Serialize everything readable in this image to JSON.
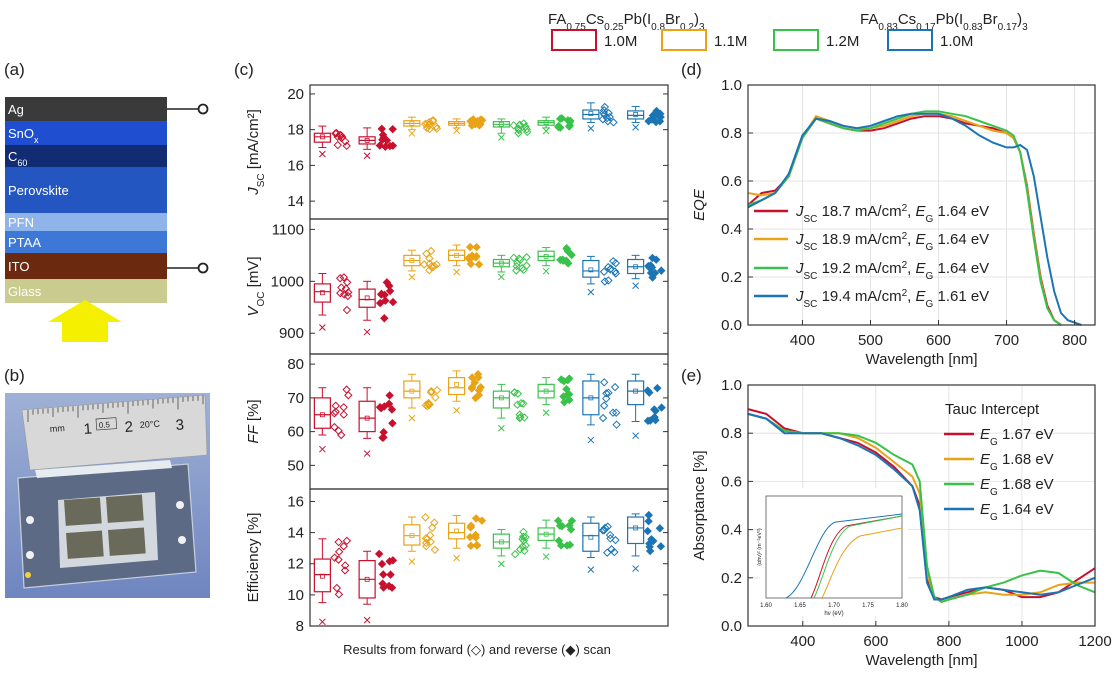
{
  "colors": {
    "red": "#c8102e",
    "orange": "#e8a317",
    "green": "#39c24a",
    "blue": "#1b75b5"
  },
  "legend_top": {
    "group1": {
      "prefix": "FA",
      "s1": "0.75",
      "mid": "Cs",
      "s2": "0.25",
      "mid2": "Pb(I",
      "s3": "0.8",
      "mid3": "Br",
      "s4": "0.2",
      "end": ")",
      "s5": "3"
    },
    "group2": {
      "prefix": "FA",
      "s1": "0.83",
      "mid": "Cs",
      "s2": "0.17",
      "mid2": "Pb(I",
      "s3": "0.83",
      "mid3": "Br",
      "s4": "0.17",
      "end": ")",
      "s5": "3"
    },
    "items": [
      {
        "label": "1.0M",
        "color": "#c8102e"
      },
      {
        "label": "1.1M",
        "color": "#e8a317"
      },
      {
        "label": "1.2M",
        "color": "#39c24a"
      },
      {
        "label": "1.0M",
        "color": "#1b75b5"
      }
    ]
  },
  "panels": {
    "a": "(a)",
    "b": "(b)",
    "c": "(c)",
    "d": "(d)",
    "e": "(e)"
  },
  "stack": {
    "layers": [
      {
        "label": "Ag",
        "color": "#3a3a3a"
      },
      {
        "label": "SnO",
        "sub": "x",
        "color": "#1f4fd0"
      },
      {
        "label": "C",
        "sub": "60",
        "color": "#122c73"
      },
      {
        "label": "Perovskite",
        "color": "#2456c2"
      },
      {
        "label": "PFN",
        "color": "#8fb4ea"
      },
      {
        "label": "PTAA",
        "color": "#3d78d6"
      },
      {
        "label": "ITO",
        "color": "#6b2a10"
      },
      {
        "label": "Glass",
        "color": "#c9cc8e"
      }
    ]
  },
  "photo": {
    "ruler_text": [
      "mm",
      "1",
      "0.5",
      "2",
      "20°C",
      "3"
    ]
  },
  "box_xlabel": "Results from forward (◇) and reverse (◆) scan",
  "chart_data": [
    {
      "type": "box",
      "ylabel_main": "J",
      "ylabel_sub": "SC",
      "ylabel_unit": " [mA/cm²]",
      "ylim": [
        13,
        20.5
      ],
      "ticks": [
        14,
        16,
        18,
        20
      ],
      "boxes": [
        {
          "q1": 17.3,
          "median": 17.6,
          "q3": 17.8,
          "low": 17.0,
          "high": 18.2,
          "mean": 17.6
        },
        {
          "q1": 17.2,
          "median": 17.4,
          "q3": 17.6,
          "low": 16.9,
          "high": 18.1,
          "mean": 17.4
        },
        {
          "q1": 18.2,
          "median": 18.35,
          "q3": 18.5,
          "low": 18.0,
          "high": 18.7,
          "mean": 18.35
        },
        {
          "q1": 18.25,
          "median": 18.35,
          "q3": 18.45,
          "low": 18.1,
          "high": 18.6,
          "mean": 18.35
        },
        {
          "q1": 18.15,
          "median": 18.3,
          "q3": 18.45,
          "low": 17.8,
          "high": 18.6,
          "mean": 18.3
        },
        {
          "q1": 18.25,
          "median": 18.4,
          "q3": 18.5,
          "low": 18.1,
          "high": 18.7,
          "mean": 18.4
        },
        {
          "q1": 18.6,
          "median": 18.85,
          "q3": 19.1,
          "low": 18.4,
          "high": 19.5,
          "mean": 18.9
        },
        {
          "q1": 18.6,
          "median": 18.8,
          "q3": 19.05,
          "low": 18.4,
          "high": 19.3,
          "mean": 18.85
        }
      ]
    },
    {
      "type": "box",
      "ylabel_main": "V",
      "ylabel_sub": "OC",
      "ylabel_unit": " [mV]",
      "ylim": [
        860,
        1120
      ],
      "ticks": [
        900,
        1000,
        1100
      ],
      "boxes": [
        {
          "q1": 960,
          "median": 980,
          "q3": 995,
          "low": 935,
          "high": 1015,
          "mean": 978
        },
        {
          "q1": 950,
          "median": 965,
          "q3": 985,
          "low": 925,
          "high": 1000,
          "mean": 968
        },
        {
          "q1": 1030,
          "median": 1040,
          "q3": 1050,
          "low": 1020,
          "high": 1060,
          "mean": 1040
        },
        {
          "q1": 1040,
          "median": 1050,
          "q3": 1060,
          "low": 1030,
          "high": 1070,
          "mean": 1050
        },
        {
          "q1": 1028,
          "median": 1035,
          "q3": 1042,
          "low": 1018,
          "high": 1050,
          "mean": 1035
        },
        {
          "q1": 1040,
          "median": 1048,
          "q3": 1058,
          "low": 1030,
          "high": 1065,
          "mean": 1048
        },
        {
          "q1": 1008,
          "median": 1020,
          "q3": 1040,
          "low": 995,
          "high": 1048,
          "mean": 1022
        },
        {
          "q1": 1015,
          "median": 1028,
          "q3": 1042,
          "low": 1005,
          "high": 1050,
          "mean": 1028
        }
      ]
    },
    {
      "type": "box",
      "ylabel_main": "FF",
      "ylabel_sub": "",
      "ylabel_unit": " [%]",
      "ylim": [
        43,
        83
      ],
      "ticks": [
        50,
        60,
        70,
        80
      ],
      "boxes": [
        {
          "q1": 61,
          "median": 65,
          "q3": 70,
          "low": 59,
          "high": 73,
          "mean": 65
        },
        {
          "q1": 60,
          "median": 64,
          "q3": 69,
          "low": 58,
          "high": 73,
          "mean": 64
        },
        {
          "q1": 70,
          "median": 72,
          "q3": 75,
          "low": 67,
          "high": 77,
          "mean": 72
        },
        {
          "q1": 71,
          "median": 73,
          "q3": 76,
          "low": 69,
          "high": 78,
          "mean": 74
        },
        {
          "q1": 67,
          "median": 70,
          "q3": 72,
          "low": 64,
          "high": 74,
          "mean": 70
        },
        {
          "q1": 70,
          "median": 72,
          "q3": 74,
          "low": 68,
          "high": 76,
          "mean": 72
        },
        {
          "q1": 65,
          "median": 70,
          "q3": 75,
          "low": 62,
          "high": 77,
          "mean": 70
        },
        {
          "q1": 68,
          "median": 72,
          "q3": 75,
          "low": 63,
          "high": 77,
          "mean": 72
        }
      ]
    },
    {
      "type": "box",
      "ylabel_main": "Efficiency",
      "ylabel_sub": "",
      "ylabel_unit": " [%]",
      "ylim": [
        8,
        16.8
      ],
      "ticks": [
        8,
        10,
        12,
        14,
        16
      ],
      "boxes": [
        {
          "q1": 10.2,
          "median": 11.3,
          "q3": 12.3,
          "low": 9.5,
          "high": 13.6,
          "mean": 11.2
        },
        {
          "q1": 9.8,
          "median": 11.0,
          "q3": 12.2,
          "low": 9.4,
          "high": 12.8,
          "mean": 11.0
        },
        {
          "q1": 13.2,
          "median": 13.8,
          "q3": 14.5,
          "low": 12.8,
          "high": 15.0,
          "mean": 13.8
        },
        {
          "q1": 13.6,
          "median": 14.0,
          "q3": 14.6,
          "low": 13.0,
          "high": 15.1,
          "mean": 14.1
        },
        {
          "q1": 13.0,
          "median": 13.4,
          "q3": 13.9,
          "low": 12.5,
          "high": 14.2,
          "mean": 13.4
        },
        {
          "q1": 13.5,
          "median": 13.9,
          "q3": 14.3,
          "low": 13.0,
          "high": 14.8,
          "mean": 13.9
        },
        {
          "q1": 12.8,
          "median": 13.8,
          "q3": 14.6,
          "low": 12.4,
          "high": 15.0,
          "mean": 13.7
        },
        {
          "q1": 13.3,
          "median": 14.3,
          "q3": 15.0,
          "low": 12.5,
          "high": 15.2,
          "mean": 14.3
        }
      ]
    },
    {
      "type": "line",
      "ylabel": "EQE",
      "xlabel": "Wavelength [nm]",
      "xlim": [
        320,
        830
      ],
      "ylim": [
        0,
        1.0
      ],
      "xticks": [
        400,
        500,
        600,
        700,
        800
      ],
      "yticks": [
        0.0,
        0.2,
        0.4,
        0.6,
        0.8,
        1.0
      ],
      "legend": [
        {
          "pre": "J",
          "sub": "SC",
          "txt": " 18.7 mA/cm",
          "sup": "2",
          "post": ", ",
          "eg": "E",
          "egsub": "G",
          "val": " 1.64 eV"
        },
        {
          "pre": "J",
          "sub": "SC",
          "txt": " 18.9 mA/cm",
          "sup": "2",
          "post": ", ",
          "eg": "E",
          "egsub": "G",
          "val": " 1.64 eV"
        },
        {
          "pre": "J",
          "sub": "SC",
          "txt": " 19.2 mA/cm",
          "sup": "2",
          "post": ", ",
          "eg": "E",
          "egsub": "G",
          "val": " 1.64 eV"
        },
        {
          "pre": "J",
          "sub": "SC",
          "txt": " 19.4 mA/cm",
          "sup": "2",
          "post": ", ",
          "eg": "E",
          "egsub": "G",
          "val": " 1.61 eV"
        }
      ],
      "series": [
        {
          "color": "#c8102e",
          "x": [
            320,
            340,
            360,
            380,
            400,
            420,
            440,
            460,
            480,
            500,
            520,
            540,
            560,
            580,
            600,
            620,
            640,
            660,
            680,
            700,
            710,
            720,
            730,
            740,
            750,
            760,
            770,
            780
          ],
          "y": [
            0.5,
            0.55,
            0.56,
            0.62,
            0.78,
            0.86,
            0.84,
            0.82,
            0.81,
            0.81,
            0.82,
            0.84,
            0.86,
            0.87,
            0.87,
            0.86,
            0.84,
            0.83,
            0.82,
            0.8,
            0.78,
            0.72,
            0.58,
            0.38,
            0.2,
            0.08,
            0.02,
            0.0
          ]
        },
        {
          "color": "#e8a317",
          "x": [
            320,
            340,
            360,
            380,
            400,
            420,
            440,
            460,
            480,
            500,
            520,
            540,
            560,
            580,
            600,
            620,
            640,
            660,
            680,
            700,
            710,
            720,
            730,
            740,
            750,
            760,
            770,
            780
          ],
          "y": [
            0.55,
            0.54,
            0.55,
            0.62,
            0.78,
            0.87,
            0.85,
            0.83,
            0.82,
            0.82,
            0.83,
            0.85,
            0.87,
            0.88,
            0.88,
            0.87,
            0.85,
            0.83,
            0.81,
            0.8,
            0.78,
            0.72,
            0.57,
            0.37,
            0.19,
            0.07,
            0.02,
            0.0
          ]
        },
        {
          "color": "#39c24a",
          "x": [
            320,
            340,
            360,
            380,
            400,
            420,
            440,
            460,
            480,
            500,
            520,
            540,
            560,
            580,
            600,
            620,
            640,
            660,
            680,
            700,
            710,
            720,
            730,
            740,
            750,
            760,
            770,
            780
          ],
          "y": [
            0.5,
            0.52,
            0.55,
            0.62,
            0.78,
            0.86,
            0.84,
            0.82,
            0.81,
            0.82,
            0.84,
            0.86,
            0.88,
            0.89,
            0.89,
            0.88,
            0.87,
            0.85,
            0.83,
            0.81,
            0.79,
            0.72,
            0.56,
            0.36,
            0.18,
            0.07,
            0.02,
            0.0
          ]
        },
        {
          "color": "#1b75b5",
          "x": [
            320,
            340,
            360,
            380,
            400,
            420,
            440,
            460,
            480,
            500,
            520,
            540,
            560,
            580,
            600,
            620,
            640,
            660,
            680,
            700,
            710,
            720,
            730,
            740,
            750,
            760,
            770,
            780,
            790,
            800,
            810
          ],
          "y": [
            0.49,
            0.52,
            0.55,
            0.63,
            0.79,
            0.86,
            0.85,
            0.83,
            0.82,
            0.83,
            0.85,
            0.87,
            0.88,
            0.88,
            0.88,
            0.86,
            0.83,
            0.79,
            0.76,
            0.74,
            0.74,
            0.75,
            0.73,
            0.62,
            0.45,
            0.28,
            0.14,
            0.05,
            0.02,
            0.01,
            0.0
          ]
        }
      ]
    },
    {
      "type": "line",
      "ylabel": "Absorptance [%]",
      "xlabel": "Wavelength [nm]",
      "xlim": [
        250,
        1200
      ],
      "ylim": [
        0,
        1.0
      ],
      "xticks": [
        400,
        600,
        800,
        1000,
        1200
      ],
      "yticks": [
        0.0,
        0.2,
        0.4,
        0.6,
        0.8,
        1.0
      ],
      "legend_title": "Tauc Intercept",
      "legend": [
        {
          "eg": "E",
          "egsub": "G",
          "val": " 1.67 eV"
        },
        {
          "eg": "E",
          "egsub": "G",
          "val": " 1.68 eV"
        },
        {
          "eg": "E",
          "egsub": "G",
          "val": " 1.68 eV"
        },
        {
          "eg": "E",
          "egsub": "G",
          "val": " 1.64 eV"
        }
      ],
      "series": [
        {
          "color": "#c8102e",
          "x": [
            250,
            300,
            350,
            400,
            450,
            500,
            550,
            600,
            650,
            700,
            720,
            740,
            760,
            780,
            800,
            850,
            900,
            950,
            1000,
            1050,
            1100,
            1150,
            1200
          ],
          "y": [
            0.9,
            0.88,
            0.82,
            0.8,
            0.8,
            0.78,
            0.76,
            0.72,
            0.66,
            0.58,
            0.5,
            0.2,
            0.12,
            0.11,
            0.12,
            0.14,
            0.16,
            0.15,
            0.12,
            0.12,
            0.14,
            0.19,
            0.24
          ]
        },
        {
          "color": "#e8a317",
          "x": [
            250,
            300,
            350,
            400,
            450,
            500,
            550,
            600,
            650,
            700,
            720,
            740,
            760,
            780,
            800,
            850,
            900,
            950,
            1000,
            1050,
            1100,
            1150,
            1200
          ],
          "y": [
            0.88,
            0.86,
            0.81,
            0.8,
            0.8,
            0.8,
            0.78,
            0.74,
            0.68,
            0.62,
            0.55,
            0.22,
            0.12,
            0.1,
            0.11,
            0.13,
            0.14,
            0.13,
            0.13,
            0.14,
            0.17,
            0.18,
            0.18
          ]
        },
        {
          "color": "#39c24a",
          "x": [
            250,
            300,
            350,
            400,
            450,
            500,
            550,
            600,
            650,
            700,
            720,
            740,
            760,
            780,
            800,
            850,
            900,
            950,
            1000,
            1050,
            1100,
            1150,
            1200
          ],
          "y": [
            0.88,
            0.86,
            0.81,
            0.8,
            0.8,
            0.8,
            0.79,
            0.76,
            0.71,
            0.67,
            0.6,
            0.25,
            0.12,
            0.1,
            0.11,
            0.13,
            0.16,
            0.18,
            0.21,
            0.23,
            0.22,
            0.17,
            0.14
          ]
        },
        {
          "color": "#1b75b5",
          "x": [
            250,
            300,
            350,
            400,
            450,
            500,
            550,
            600,
            650,
            700,
            720,
            740,
            760,
            780,
            800,
            850,
            900,
            950,
            1000,
            1050,
            1100,
            1150,
            1200
          ],
          "y": [
            0.88,
            0.86,
            0.8,
            0.8,
            0.8,
            0.78,
            0.75,
            0.71,
            0.65,
            0.58,
            0.48,
            0.18,
            0.11,
            0.11,
            0.12,
            0.15,
            0.16,
            0.15,
            0.14,
            0.13,
            0.14,
            0.17,
            0.2
          ]
        }
      ],
      "inset": {
        "xlabel": "hν (eV)",
        "ylabel": "(αhν)² (m⁻²eV²)",
        "xticks": [
          "1.60",
          "1.65",
          "1.70",
          "1.75",
          "1.80"
        ]
      }
    }
  ]
}
